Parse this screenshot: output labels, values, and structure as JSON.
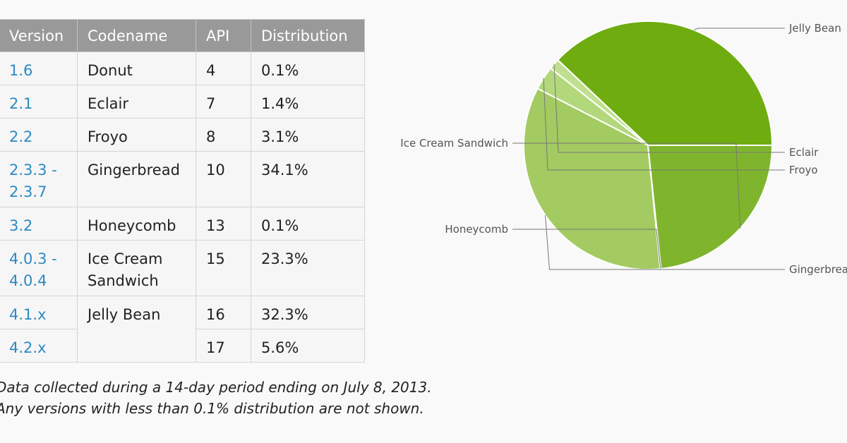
{
  "table": {
    "headers": [
      "Version",
      "Codename",
      "API",
      "Distribution"
    ],
    "rows": [
      {
        "version": "1.6",
        "codename": "Donut",
        "api": "4",
        "distribution": "0.1%"
      },
      {
        "version": "2.1",
        "codename": "Eclair",
        "api": "7",
        "distribution": "1.4%"
      },
      {
        "version": "2.2",
        "codename": "Froyo",
        "api": "8",
        "distribution": "3.1%"
      },
      {
        "version": "2.3.3 -\n2.3.7",
        "codename": "Gingerbread",
        "api": "10",
        "distribution": "34.1%"
      },
      {
        "version": "3.2",
        "codename": "Honeycomb",
        "api": "13",
        "distribution": "0.1%"
      },
      {
        "version": "4.0.3 -\n4.0.4",
        "codename": "Ice Cream\nSandwich",
        "api": "15",
        "distribution": "23.3%"
      },
      {
        "version": "4.1.x",
        "codename": "Jelly Bean",
        "api": "16",
        "distribution": "32.3%"
      },
      {
        "version": "4.2.x",
        "codename": "",
        "api": "17",
        "distribution": "5.6%"
      }
    ]
  },
  "notes": {
    "line1": "Data collected during a 14-day period ending on July 8, 2013.",
    "line2": "Any versions with less than 0.1% distribution are not shown."
  },
  "chart_data": {
    "type": "pie",
    "slices": [
      {
        "label": "Jelly Bean",
        "value": 37.9,
        "color": "#6fac0f"
      },
      {
        "label": "Eclair",
        "value": 1.4,
        "color": "#c0e08f"
      },
      {
        "label": "Froyo",
        "value": 3.1,
        "color": "#b3d87c"
      },
      {
        "label": "Gingerbread",
        "value": 34.1,
        "color": "#a3cb61"
      },
      {
        "label": "Honeycomb",
        "value": 0.1,
        "color": "#8fbe43"
      },
      {
        "label": "Ice Cream Sandwich",
        "value": 23.3,
        "color": "#7fb52c"
      }
    ],
    "start_angle_deg": 0,
    "direction": "clockwise"
  }
}
